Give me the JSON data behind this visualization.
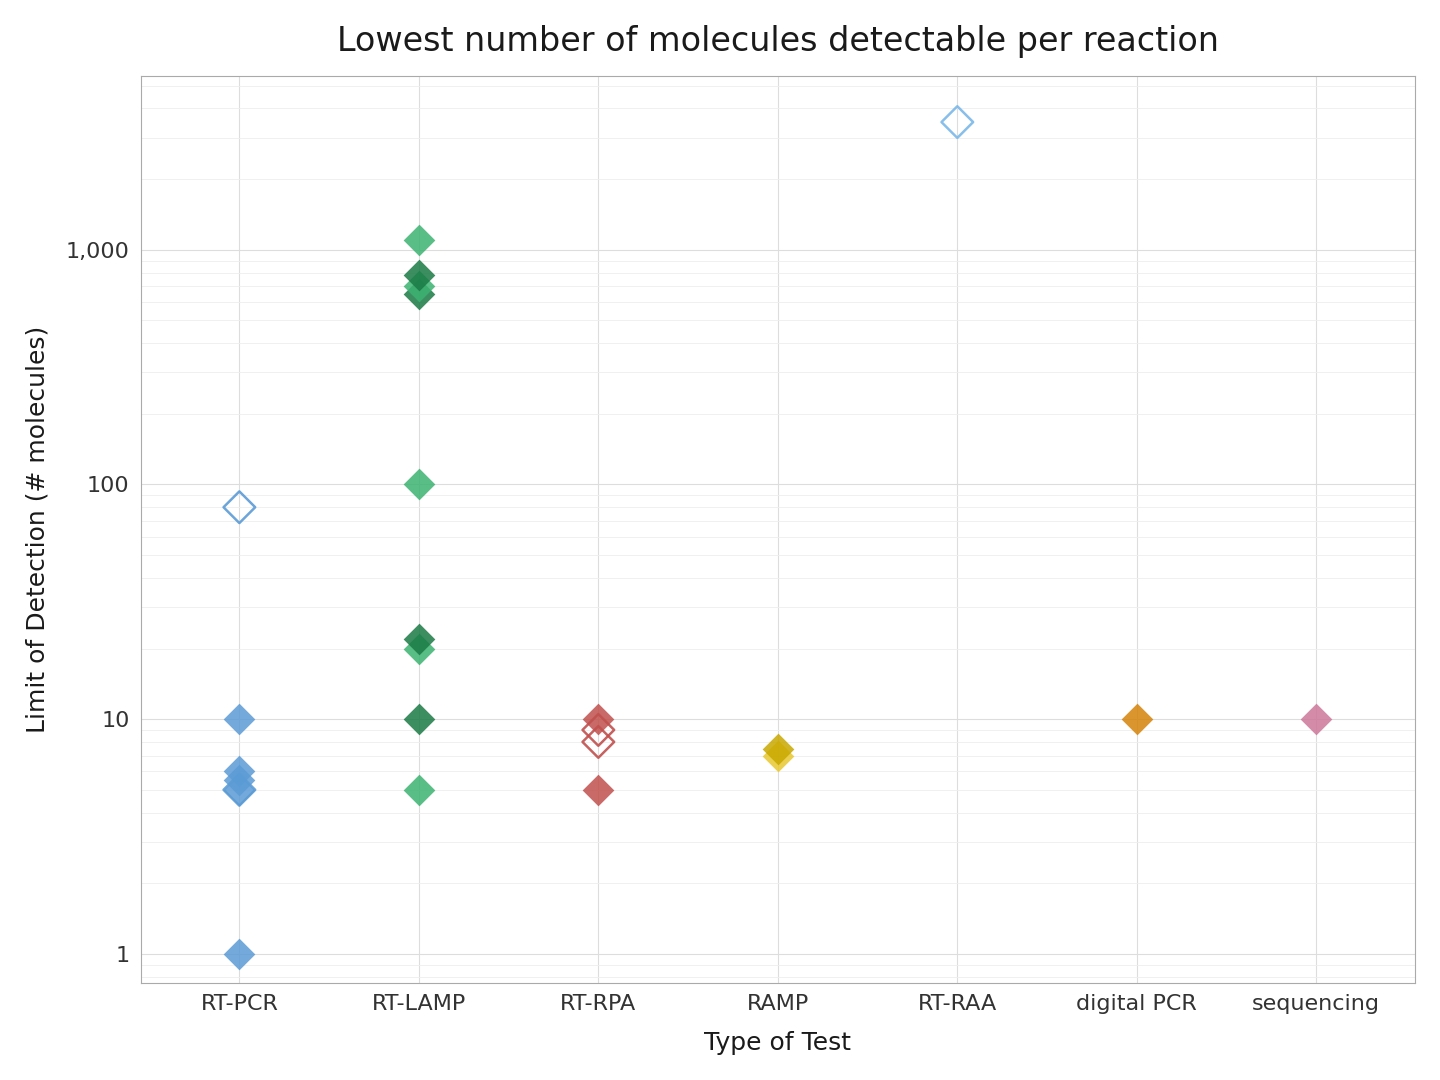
{
  "title": "Lowest number of molecules detectable per reaction",
  "xlabel": "Type of Test",
  "ylabel": "Limit of Detection (# molecules)",
  "categories": [
    "RT-PCR",
    "RT-LAMP",
    "RT-RPA",
    "RAMP",
    "RT-RAA",
    "digital PCR",
    "sequencing"
  ],
  "points": [
    {
      "category": "RT-PCR",
      "y": 1,
      "filled": true,
      "color": "#5B9BD5"
    },
    {
      "category": "RT-PCR",
      "y": 5,
      "filled": true,
      "color": "#5B9BD5"
    },
    {
      "category": "RT-PCR",
      "y": 5.5,
      "filled": true,
      "color": "#5B9BD5"
    },
    {
      "category": "RT-PCR",
      "y": 6,
      "filled": true,
      "color": "#5B9BD5"
    },
    {
      "category": "RT-PCR",
      "y": 10,
      "filled": true,
      "color": "#5B9BD5"
    },
    {
      "category": "RT-PCR",
      "y": 5,
      "filled": false,
      "color": "#5B9BD5"
    },
    {
      "category": "RT-PCR",
      "y": 80,
      "filled": false,
      "color": "#5B9BD5"
    },
    {
      "category": "RT-LAMP",
      "y": 5,
      "filled": true,
      "color": "#3CB371"
    },
    {
      "category": "RT-LAMP",
      "y": 10,
      "filled": true,
      "color": "#1A7A45"
    },
    {
      "category": "RT-LAMP",
      "y": 20,
      "filled": true,
      "color": "#3CB371"
    },
    {
      "category": "RT-LAMP",
      "y": 22,
      "filled": true,
      "color": "#1A7A45"
    },
    {
      "category": "RT-LAMP",
      "y": 100,
      "filled": true,
      "color": "#3CB371"
    },
    {
      "category": "RT-LAMP",
      "y": 650,
      "filled": true,
      "color": "#1A7A45"
    },
    {
      "category": "RT-LAMP",
      "y": 700,
      "filled": true,
      "color": "#3CB371"
    },
    {
      "category": "RT-LAMP",
      "y": 780,
      "filled": true,
      "color": "#1A7A45"
    },
    {
      "category": "RT-LAMP",
      "y": 1100,
      "filled": true,
      "color": "#3CB371"
    },
    {
      "category": "RT-RPA",
      "y": 5,
      "filled": true,
      "color": "#C0504D"
    },
    {
      "category": "RT-RPA",
      "y": 10,
      "filled": true,
      "color": "#C0504D"
    },
    {
      "category": "RT-RPA",
      "y": 8,
      "filled": false,
      "color": "#C0504D"
    },
    {
      "category": "RT-RPA",
      "y": 9,
      "filled": false,
      "color": "#C0504D"
    },
    {
      "category": "RAMP",
      "y": 7,
      "filled": true,
      "color": "#E8C830"
    },
    {
      "category": "RAMP",
      "y": 7.5,
      "filled": true,
      "color": "#C8A800"
    },
    {
      "category": "RT-RAA",
      "y": 3500,
      "filled": false,
      "color": "#7BB8E8"
    },
    {
      "category": "digital PCR",
      "y": 10,
      "filled": true,
      "color": "#D4830A"
    },
    {
      "category": "sequencing",
      "y": 10,
      "filled": true,
      "color": "#CC7799"
    }
  ],
  "background_color": "#FFFFFF",
  "grid_color_major": "#DDDDDD",
  "grid_color_minor": "#EEEEEE",
  "ylim_log": [
    0.75,
    5500
  ],
  "yticks": [
    1,
    10,
    100,
    1000
  ],
  "ytick_labels": [
    "1",
    "10",
    "100",
    "1,000"
  ],
  "marker_size": 260,
  "marker_lw": 1.8,
  "title_fontsize": 24,
  "label_fontsize": 18,
  "tick_fontsize": 16
}
